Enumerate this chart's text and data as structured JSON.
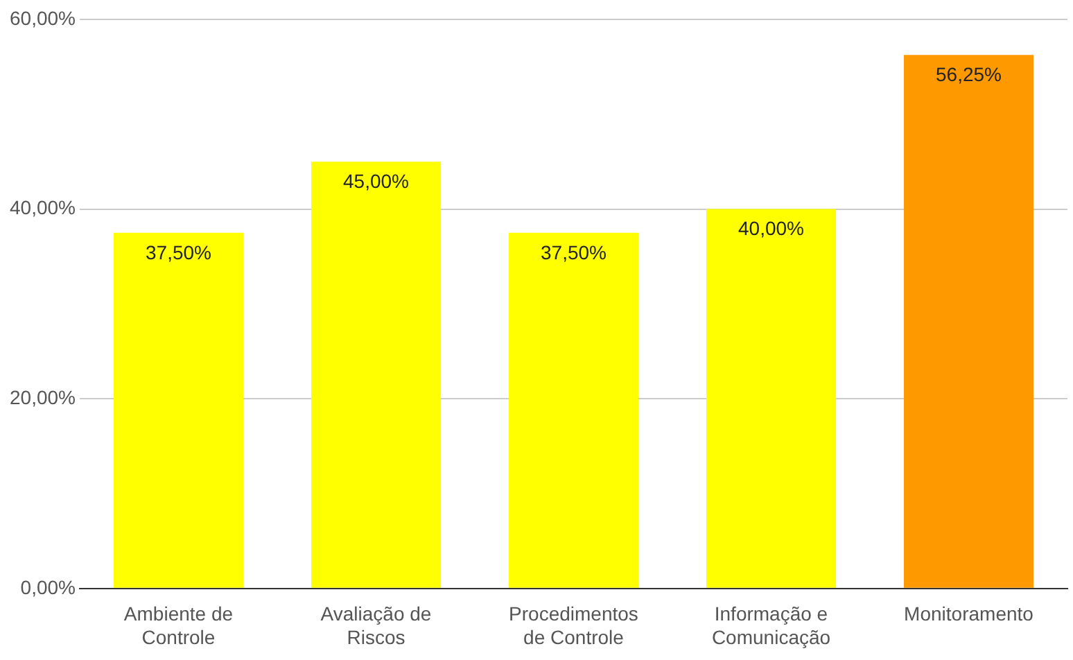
{
  "chart_data": {
    "type": "bar",
    "categories": [
      "Ambiente de Controle",
      "Avaliação de Riscos",
      "Procedimentos de Controle",
      "Informação e Comunicação",
      "Monitoramento"
    ],
    "values": [
      37.5,
      45,
      37.5,
      40,
      56.25
    ],
    "colors": [
      "#ffff00",
      "#ffff00",
      "#ffff00",
      "#ffff00",
      "#ff9900"
    ],
    "value_labels": [
      "37,50%",
      "45,00%",
      "37,50%",
      "40,00%",
      "56,25%"
    ],
    "ylim": [
      0,
      60
    ],
    "yticks": [
      {
        "value": 0,
        "label": "0,00%"
      },
      {
        "value": 20,
        "label": "20,00%"
      },
      {
        "value": 40,
        "label": "40,00%"
      },
      {
        "value": 60,
        "label": "60,00%"
      }
    ],
    "grid": "y",
    "legend": false
  }
}
